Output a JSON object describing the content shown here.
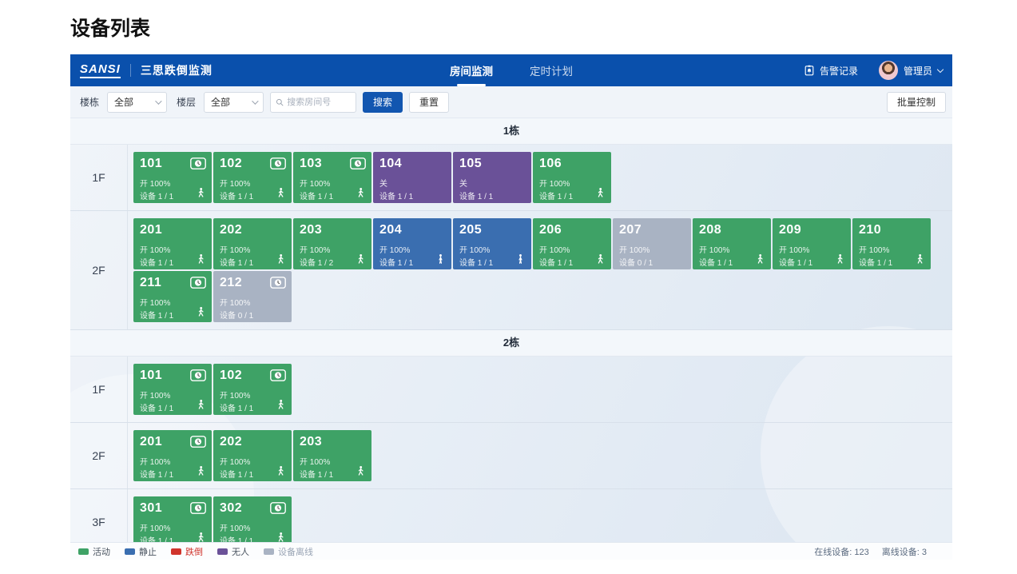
{
  "page_title": "设备列表",
  "header": {
    "logo": "SANSI",
    "app_title": "三思跌倒监测",
    "tabs": [
      {
        "label": "房间监测",
        "active": true
      },
      {
        "label": "定时计划",
        "active": false
      }
    ],
    "alarm_records": "告警记录",
    "user": "管理员"
  },
  "filters": {
    "building_label": "楼栋",
    "building_value": "全部",
    "floor_label": "楼层",
    "floor_value": "全部",
    "search_placeholder": "搜索房间号",
    "search_button": "搜索",
    "reset_button": "重置",
    "batch_control_button": "批量控制"
  },
  "colors": {
    "active": "#3EA266",
    "still": "#3A6EB0",
    "fall": "#D0342C",
    "vacant": "#6A5198",
    "offline": "#A9B3C3",
    "header_blue": "#0A50AC",
    "button_blue": "#1256B0"
  },
  "icons": [
    "timer-badge-icon",
    "walking-person-icon",
    "standing-person-icon",
    "alarm-record-icon",
    "search-icon",
    "chevron-down-icon"
  ],
  "buildings": [
    {
      "name": "1栋",
      "floors": [
        {
          "label": "1F",
          "rooms": [
            {
              "number": "101",
              "status": "active",
              "power": "开 100%",
              "devices": "设备 1 / 1",
              "timer": true,
              "person": "walking"
            },
            {
              "number": "102",
              "status": "active",
              "power": "开 100%",
              "devices": "设备 1 / 1",
              "timer": true,
              "person": "walking"
            },
            {
              "number": "103",
              "status": "active",
              "power": "开 100%",
              "devices": "设备 1 / 1",
              "timer": true,
              "person": "walking"
            },
            {
              "number": "104",
              "status": "vacant",
              "power": "关",
              "devices": "设备 1 / 1",
              "timer": false,
              "person": null
            },
            {
              "number": "105",
              "status": "vacant",
              "power": "关",
              "devices": "设备 1 / 1",
              "timer": false,
              "person": null
            },
            {
              "number": "106",
              "status": "active",
              "power": "开 100%",
              "devices": "设备 1 / 1",
              "timer": false,
              "person": "walking"
            }
          ]
        },
        {
          "label": "2F",
          "rooms": [
            {
              "number": "201",
              "status": "active",
              "power": "开 100%",
              "devices": "设备 1 / 1",
              "timer": false,
              "person": "walking"
            },
            {
              "number": "202",
              "status": "active",
              "power": "开 100%",
              "devices": "设备 1 / 1",
              "timer": false,
              "person": "walking"
            },
            {
              "number": "203",
              "status": "active",
              "power": "开 100%",
              "devices": "设备 1 / 2",
              "timer": false,
              "person": "walking"
            },
            {
              "number": "204",
              "status": "still",
              "power": "开 100%",
              "devices": "设备 1 / 1",
              "timer": false,
              "person": "standing"
            },
            {
              "number": "205",
              "status": "still",
              "power": "开 100%",
              "devices": "设备 1 / 1",
              "timer": false,
              "person": "standing"
            },
            {
              "number": "206",
              "status": "active",
              "power": "开 100%",
              "devices": "设备 1 / 1",
              "timer": false,
              "person": "walking"
            },
            {
              "number": "207",
              "status": "offline",
              "power": "开 100%",
              "devices": "设备 0 / 1",
              "timer": false,
              "person": null
            },
            {
              "number": "208",
              "status": "active",
              "power": "开 100%",
              "devices": "设备 1 / 1",
              "timer": false,
              "person": "walking"
            },
            {
              "number": "209",
              "status": "active",
              "power": "开 100%",
              "devices": "设备 1 / 1",
              "timer": false,
              "person": "walking"
            },
            {
              "number": "210",
              "status": "active",
              "power": "开 100%",
              "devices": "设备 1 / 1",
              "timer": false,
              "person": "walking"
            },
            {
              "number": "211",
              "status": "active",
              "power": "开 100%",
              "devices": "设备 1 / 1",
              "timer": true,
              "person": "walking"
            },
            {
              "number": "212",
              "status": "offline",
              "power": "开 100%",
              "devices": "设备 0 / 1",
              "timer": true,
              "person": null
            }
          ]
        }
      ]
    },
    {
      "name": "2栋",
      "floors": [
        {
          "label": "1F",
          "rooms": [
            {
              "number": "101",
              "status": "active",
              "power": "开 100%",
              "devices": "设备 1 / 1",
              "timer": true,
              "person": "walking"
            },
            {
              "number": "102",
              "status": "active",
              "power": "开 100%",
              "devices": "设备 1 / 1",
              "timer": true,
              "person": "walking"
            }
          ]
        },
        {
          "label": "2F",
          "rooms": [
            {
              "number": "201",
              "status": "active",
              "power": "开 100%",
              "devices": "设备 1 / 1",
              "timer": true,
              "person": "walking"
            },
            {
              "number": "202",
              "status": "active",
              "power": "开 100%",
              "devices": "设备 1 / 1",
              "timer": false,
              "person": "walking"
            },
            {
              "number": "203",
              "status": "active",
              "power": "开 100%",
              "devices": "设备 1 / 1",
              "timer": false,
              "person": "walking"
            }
          ]
        },
        {
          "label": "3F",
          "rooms": [
            {
              "number": "301",
              "status": "active",
              "power": "开 100%",
              "devices": "设备 1 / 1",
              "timer": true,
              "person": "walking"
            },
            {
              "number": "302",
              "status": "active",
              "power": "开 100%",
              "devices": "设备 1 / 1",
              "timer": true,
              "person": "walking"
            }
          ]
        }
      ]
    }
  ],
  "legend": [
    {
      "label": "活动",
      "color": "#3EA266",
      "text_color": "#4a5460"
    },
    {
      "label": "静止",
      "color": "#3A6EB0",
      "text_color": "#4a5460"
    },
    {
      "label": "跌倒",
      "color": "#D0342C",
      "text_color": "#D0342C"
    },
    {
      "label": "无人",
      "color": "#6A5198",
      "text_color": "#4a5460"
    },
    {
      "label": "设备离线",
      "color": "#A9B3C3",
      "text_color": "#9AA5B5"
    }
  ],
  "status_bar": {
    "online": "在线设备: 123",
    "offline": "离线设备: 3"
  }
}
